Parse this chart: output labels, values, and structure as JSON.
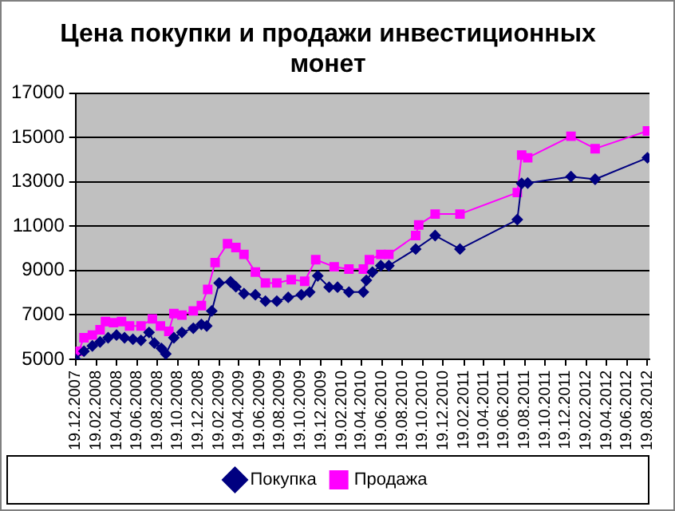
{
  "chart_data": {
    "type": "line",
    "title": "Цена покупки и продажи инвестиционных монет",
    "xlim": [
      "2007-12-19",
      "2012-08-25"
    ],
    "xticks": [
      {
        "value": "2007-12-19",
        "label": "19.12.2007"
      },
      {
        "value": "2008-02-19",
        "label": "19.02.2008"
      },
      {
        "value": "2008-04-19",
        "label": "19.04.2008"
      },
      {
        "value": "2008-06-19",
        "label": "19.06.2008"
      },
      {
        "value": "2008-08-19",
        "label": "19.08.2008"
      },
      {
        "value": "2008-10-19",
        "label": "19.10.2008"
      },
      {
        "value": "2008-12-19",
        "label": "19.12.2008"
      },
      {
        "value": "2009-02-19",
        "label": "19.02.2009"
      },
      {
        "value": "2009-04-19",
        "label": "19.04.2009"
      },
      {
        "value": "2009-06-19",
        "label": "19.06.2009"
      },
      {
        "value": "2009-08-19",
        "label": "19.08.2009"
      },
      {
        "value": "2009-10-19",
        "label": "19.10.2009"
      },
      {
        "value": "2009-12-19",
        "label": "19.12.2009"
      },
      {
        "value": "2010-02-19",
        "label": "19.02.2010"
      },
      {
        "value": "2010-04-19",
        "label": "19.04.2010"
      },
      {
        "value": "2010-06-19",
        "label": "19.06.2010"
      },
      {
        "value": "2010-08-19",
        "label": "19.08.2010"
      },
      {
        "value": "2010-10-19",
        "label": "19.10.2010"
      },
      {
        "value": "2010-12-19",
        "label": "19.12.2010"
      },
      {
        "value": "2011-02-19",
        "label": "19.02.2011"
      },
      {
        "value": "2011-04-19",
        "label": "19.04.2011"
      },
      {
        "value": "2011-06-19",
        "label": "19.06.2011"
      },
      {
        "value": "2011-08-19",
        "label": "19.08.2011"
      },
      {
        "value": "2011-10-19",
        "label": "19.10.2011"
      },
      {
        "value": "2011-12-19",
        "label": "19.12.2011"
      },
      {
        "value": "2012-02-19",
        "label": "19.02.2012"
      },
      {
        "value": "2012-04-19",
        "label": "19.04.2012"
      },
      {
        "value": "2012-06-19",
        "label": "19.06.2012"
      },
      {
        "value": "2012-08-19",
        "label": "19.08.2012"
      }
    ],
    "ylim": [
      5000,
      17000
    ],
    "yticks": [
      5000,
      7000,
      9000,
      11000,
      13000,
      15000,
      17000
    ],
    "grid": "y",
    "legend": "bottom",
    "line_style": "solid",
    "series": [
      {
        "name": "Покупка",
        "color": "#000080",
        "marker": "diamond",
        "x": [
          "2007-12-19",
          "2008-01-13",
          "2008-02-07",
          "2008-03-01",
          "2008-03-25",
          "2008-04-19",
          "2008-05-13",
          "2008-06-07",
          "2008-07-01",
          "2008-07-25",
          "2008-08-10",
          "2008-08-31",
          "2008-09-13",
          "2008-10-07",
          "2008-10-31",
          "2008-12-04",
          "2008-12-28",
          "2009-01-13",
          "2009-01-28",
          "2009-02-19",
          "2009-03-25",
          "2009-04-10",
          "2009-05-04",
          "2009-06-07",
          "2009-07-07",
          "2009-08-10",
          "2009-09-13",
          "2009-10-22",
          "2009-11-16",
          "2009-12-10",
          "2010-01-13",
          "2010-02-07",
          "2010-03-13",
          "2010-04-25",
          "2010-05-04",
          "2010-05-22",
          "2010-06-16",
          "2010-07-10",
          "2010-09-28",
          "2010-11-25",
          "2011-02-07",
          "2011-07-28",
          "2011-08-10",
          "2011-08-28",
          "2012-01-04",
          "2012-03-16",
          "2012-08-19"
        ],
        "values": [
          5000,
          5360,
          5600,
          5780,
          5970,
          6090,
          5970,
          5900,
          5850,
          6210,
          5730,
          5490,
          5240,
          5970,
          6210,
          6400,
          6570,
          6500,
          7180,
          8440,
          8490,
          8270,
          7960,
          7910,
          7620,
          7620,
          7790,
          7910,
          8030,
          8760,
          8250,
          8250,
          8030,
          8030,
          8560,
          8930,
          9220,
          9220,
          9970,
          10580,
          9970,
          11300,
          12930,
          12950,
          13240,
          13120,
          14090
        ]
      },
      {
        "name": "Продажа",
        "color": "#ff00ff",
        "marker": "square",
        "x": [
          "2007-12-28",
          "2008-01-13",
          "2008-02-07",
          "2008-03-01",
          "2008-03-17",
          "2008-04-10",
          "2008-05-04",
          "2008-05-28",
          "2008-07-01",
          "2008-08-04",
          "2008-08-28",
          "2008-09-22",
          "2008-10-07",
          "2008-10-31",
          "2008-12-04",
          "2008-12-28",
          "2009-01-16",
          "2009-02-07",
          "2009-03-16",
          "2009-04-10",
          "2009-05-04",
          "2009-06-07",
          "2009-07-07",
          "2009-08-10",
          "2009-09-22",
          "2009-11-01",
          "2009-12-04",
          "2010-01-28",
          "2010-03-13",
          "2010-04-25",
          "2010-05-13",
          "2010-06-16",
          "2010-07-10",
          "2010-09-28",
          "2010-10-07",
          "2010-11-25",
          "2011-02-07",
          "2011-07-28",
          "2011-08-10",
          "2011-08-28",
          "2012-01-04",
          "2012-03-16",
          "2012-08-19"
        ],
        "values": [
          5360,
          5970,
          6090,
          6330,
          6700,
          6650,
          6700,
          6500,
          6500,
          6820,
          6500,
          6260,
          7060,
          6990,
          7180,
          7420,
          8150,
          9360,
          10210,
          10040,
          9730,
          8930,
          8440,
          8440,
          8590,
          8520,
          9490,
          9170,
          9070,
          9070,
          9490,
          9730,
          9730,
          10580,
          11060,
          11550,
          11550,
          12520,
          14210,
          14090,
          15060,
          14500,
          15300
        ]
      }
    ]
  }
}
